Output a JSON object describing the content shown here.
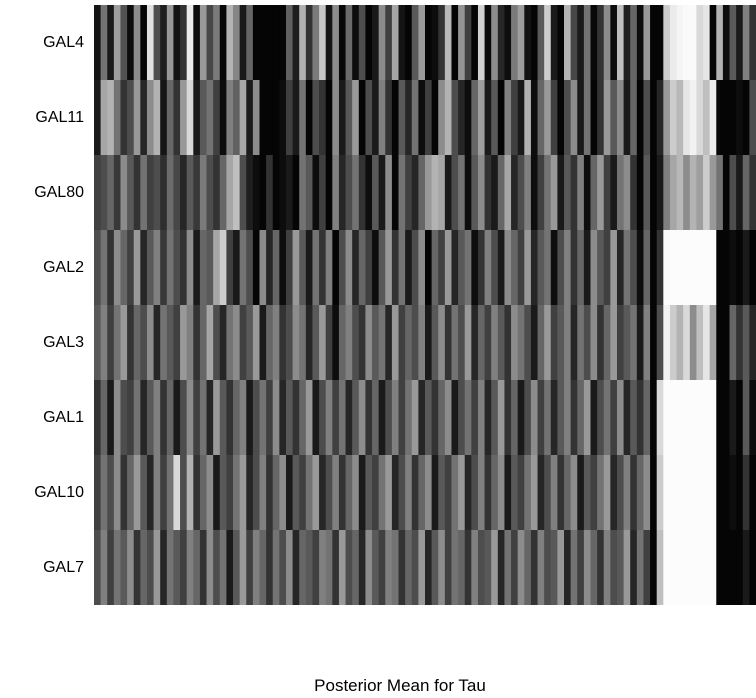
{
  "chart_data": {
    "type": "heatmap",
    "title": "",
    "xlabel": "Posterior Mean for Tau",
    "ylabel": "",
    "rows": [
      "GAL4",
      "GAL11",
      "GAL80",
      "GAL2",
      "GAL3",
      "GAL1",
      "GAL10",
      "GAL7"
    ],
    "columns": 100,
    "colormap": "grayscale (black = low, white = high)",
    "grid": false,
    "values": [
      [
        0.08,
        0.45,
        0.1,
        0.62,
        0.32,
        0.05,
        0.55,
        0.02,
        0.88,
        0.3,
        0.12,
        0.6,
        0.08,
        0.2,
        0.92,
        0.05,
        0.6,
        0.28,
        0.48,
        0.03,
        0.7,
        0.52,
        0.1,
        0.4,
        0.02,
        0.02,
        0.02,
        0.02,
        0.02,
        0.38,
        0.12,
        0.7,
        0.2,
        0.48,
        0.78,
        0.08,
        0.55,
        0.03,
        0.42,
        0.05,
        0.3,
        0.02,
        0.1,
        0.55,
        0.25,
        0.65,
        0.08,
        0.02,
        0.35,
        0.6,
        0.02,
        0.05,
        0.2,
        0.72,
        0.02,
        0.58,
        0.25,
        0.02,
        0.82,
        0.04,
        0.55,
        0.15,
        0.05,
        0.48,
        0.62,
        0.08,
        0.02,
        0.35,
        0.8,
        0.1,
        0.02,
        0.7,
        0.28,
        0.1,
        0.45,
        0.03,
        0.2,
        0.55,
        0.05,
        0.75,
        0.12,
        0.4,
        0.05,
        0.6,
        0.02,
        0.02,
        0.8,
        0.92,
        0.96,
        0.98,
        0.98,
        0.85,
        0.9,
        0.02,
        0.7,
        0.05,
        0.35,
        0.1,
        0.5,
        0.2
      ],
      [
        0.1,
        0.65,
        0.7,
        0.45,
        0.2,
        0.3,
        0.6,
        0.15,
        0.55,
        0.7,
        0.08,
        0.4,
        0.2,
        0.6,
        0.85,
        0.1,
        0.35,
        0.45,
        0.25,
        0.05,
        0.5,
        0.38,
        0.65,
        0.1,
        0.55,
        0.02,
        0.02,
        0.02,
        0.05,
        0.25,
        0.1,
        0.45,
        0.02,
        0.3,
        0.2,
        0.02,
        0.55,
        0.1,
        0.35,
        0.6,
        0.02,
        0.3,
        0.1,
        0.5,
        0.2,
        0.02,
        0.35,
        0.15,
        0.45,
        0.05,
        0.25,
        0.02,
        0.55,
        0.7,
        0.3,
        0.15,
        0.05,
        0.4,
        0.62,
        0.1,
        0.35,
        0.02,
        0.5,
        0.25,
        0.1,
        0.7,
        0.05,
        0.4,
        0.6,
        0.25,
        0.02,
        0.3,
        0.55,
        0.1,
        0.45,
        0.02,
        0.2,
        0.6,
        0.35,
        0.55,
        0.1,
        0.4,
        0.02,
        0.3,
        0.02,
        0.15,
        0.6,
        0.8,
        0.72,
        0.9,
        0.95,
        0.85,
        0.75,
        0.92,
        0.02,
        0.02,
        0.02,
        0.05,
        0.02,
        0.3
      ],
      [
        0.25,
        0.3,
        0.4,
        0.22,
        0.55,
        0.35,
        0.2,
        0.45,
        0.25,
        0.3,
        0.18,
        0.42,
        0.28,
        0.15,
        0.35,
        0.22,
        0.48,
        0.3,
        0.2,
        0.4,
        0.65,
        0.75,
        0.3,
        0.12,
        0.05,
        0.02,
        0.2,
        0.02,
        0.05,
        0.1,
        0.02,
        0.45,
        0.35,
        0.05,
        0.25,
        0.02,
        0.5,
        0.15,
        0.3,
        0.45,
        0.2,
        0.05,
        0.35,
        0.1,
        0.55,
        0.02,
        0.45,
        0.25,
        0.15,
        0.4,
        0.6,
        0.7,
        0.65,
        0.1,
        0.3,
        0.45,
        0.05,
        0.35,
        0.55,
        0.2,
        0.1,
        0.4,
        0.65,
        0.15,
        0.3,
        0.5,
        0.05,
        0.25,
        0.45,
        0.6,
        0.1,
        0.35,
        0.2,
        0.5,
        0.05,
        0.4,
        0.6,
        0.25,
        0.1,
        0.45,
        0.55,
        0.2,
        0.02,
        0.35,
        0.02,
        0.1,
        0.5,
        0.65,
        0.72,
        0.55,
        0.7,
        0.62,
        0.8,
        0.6,
        0.45,
        0.02,
        0.3,
        0.1,
        0.4,
        0.2
      ],
      [
        0.3,
        0.45,
        0.2,
        0.55,
        0.4,
        0.25,
        0.6,
        0.15,
        0.35,
        0.5,
        0.22,
        0.45,
        0.3,
        0.2,
        0.55,
        0.1,
        0.4,
        0.35,
        0.65,
        0.8,
        0.25,
        0.1,
        0.45,
        0.3,
        0.02,
        0.55,
        0.15,
        0.4,
        0.05,
        0.25,
        0.6,
        0.35,
        0.1,
        0.45,
        0.2,
        0.5,
        0.02,
        0.3,
        0.55,
        0.15,
        0.4,
        0.25,
        0.05,
        0.35,
        0.6,
        0.2,
        0.45,
        0.1,
        0.3,
        0.55,
        0.02,
        0.4,
        0.25,
        0.6,
        0.15,
        0.35,
        0.45,
        0.05,
        0.2,
        0.5,
        0.3,
        0.1,
        0.55,
        0.4,
        0.25,
        0.6,
        0.15,
        0.35,
        0.45,
        0.05,
        0.3,
        0.5,
        0.2,
        0.4,
        0.1,
        0.55,
        0.35,
        0.25,
        0.6,
        0.15,
        0.45,
        0.3,
        0.05,
        0.4,
        0.02,
        0.2,
        0.99,
        0.99,
        0.99,
        0.99,
        0.99,
        0.99,
        0.99,
        0.99,
        0.02,
        0.02,
        0.05,
        0.02,
        0.1,
        0.02
      ],
      [
        0.35,
        0.5,
        0.25,
        0.45,
        0.6,
        0.2,
        0.4,
        0.3,
        0.55,
        0.15,
        0.45,
        0.35,
        0.25,
        0.6,
        0.5,
        0.2,
        0.4,
        0.65,
        0.3,
        0.15,
        0.45,
        0.55,
        0.25,
        0.35,
        0.6,
        0.1,
        0.4,
        0.5,
        0.2,
        0.3,
        0.55,
        0.45,
        0.15,
        0.35,
        0.6,
        0.25,
        0.05,
        0.4,
        0.5,
        0.3,
        0.2,
        0.55,
        0.35,
        0.45,
        0.15,
        0.6,
        0.25,
        0.4,
        0.3,
        0.5,
        0.1,
        0.35,
        0.55,
        0.2,
        0.45,
        0.3,
        0.6,
        0.15,
        0.4,
        0.25,
        0.5,
        0.35,
        0.2,
        0.55,
        0.45,
        0.3,
        0.1,
        0.4,
        0.6,
        0.25,
        0.35,
        0.5,
        0.15,
        0.45,
        0.3,
        0.55,
        0.2,
        0.4,
        0.6,
        0.25,
        0.35,
        0.45,
        0.1,
        0.5,
        0.02,
        0.3,
        0.95,
        0.8,
        0.7,
        0.85,
        0.55,
        0.75,
        0.9,
        0.65,
        0.02,
        0.02,
        0.4,
        0.2,
        0.35,
        0.15
      ],
      [
        0.2,
        0.4,
        0.1,
        0.55,
        0.3,
        0.25,
        0.45,
        0.15,
        0.35,
        0.5,
        0.2,
        0.4,
        0.1,
        0.3,
        0.55,
        0.25,
        0.45,
        0.15,
        0.6,
        0.35,
        0.2,
        0.4,
        0.5,
        0.1,
        0.3,
        0.45,
        0.25,
        0.55,
        0.15,
        0.35,
        0.2,
        0.4,
        0.6,
        0.1,
        0.3,
        0.5,
        0.25,
        0.45,
        0.15,
        0.35,
        0.55,
        0.2,
        0.4,
        0.1,
        0.3,
        0.5,
        0.25,
        0.45,
        0.6,
        0.15,
        0.35,
        0.2,
        0.4,
        0.55,
        0.1,
        0.3,
        0.45,
        0.25,
        0.5,
        0.15,
        0.35,
        0.6,
        0.2,
        0.4,
        0.1,
        0.3,
        0.55,
        0.25,
        0.45,
        0.15,
        0.35,
        0.5,
        0.2,
        0.4,
        0.6,
        0.1,
        0.3,
        0.45,
        0.25,
        0.55,
        0.15,
        0.35,
        0.2,
        0.4,
        0.02,
        0.85,
        0.99,
        0.99,
        0.99,
        0.99,
        0.99,
        0.99,
        0.99,
        0.99,
        0.02,
        0.02,
        0.1,
        0.02,
        0.35,
        0.05
      ],
      [
        0.25,
        0.45,
        0.3,
        0.55,
        0.2,
        0.4,
        0.6,
        0.35,
        0.15,
        0.5,
        0.25,
        0.45,
        0.85,
        0.3,
        0.7,
        0.2,
        0.4,
        0.55,
        0.1,
        0.35,
        0.25,
        0.45,
        0.6,
        0.15,
        0.3,
        0.5,
        0.2,
        0.4,
        0.55,
        0.1,
        0.35,
        0.25,
        0.45,
        0.6,
        0.15,
        0.3,
        0.5,
        0.2,
        0.4,
        0.55,
        0.1,
        0.35,
        0.25,
        0.45,
        0.6,
        0.15,
        0.3,
        0.5,
        0.2,
        0.4,
        0.55,
        0.1,
        0.35,
        0.25,
        0.45,
        0.6,
        0.15,
        0.3,
        0.5,
        0.2,
        0.4,
        0.55,
        0.1,
        0.35,
        0.25,
        0.45,
        0.6,
        0.15,
        0.3,
        0.5,
        0.2,
        0.4,
        0.55,
        0.1,
        0.35,
        0.25,
        0.45,
        0.6,
        0.15,
        0.3,
        0.5,
        0.2,
        0.4,
        0.55,
        0.02,
        0.8,
        0.99,
        0.99,
        0.99,
        0.99,
        0.99,
        0.99,
        0.99,
        0.99,
        0.02,
        0.02,
        0.05,
        0.02,
        0.2,
        0.02
      ],
      [
        0.3,
        0.5,
        0.25,
        0.45,
        0.35,
        0.55,
        0.2,
        0.4,
        0.3,
        0.6,
        0.15,
        0.45,
        0.35,
        0.25,
        0.5,
        0.4,
        0.2,
        0.55,
        0.3,
        0.45,
        0.1,
        0.35,
        0.6,
        0.25,
        0.5,
        0.4,
        0.2,
        0.45,
        0.3,
        0.55,
        0.15,
        0.4,
        0.35,
        0.25,
        0.5,
        0.45,
        0.2,
        0.6,
        0.3,
        0.4,
        0.15,
        0.55,
        0.35,
        0.25,
        0.5,
        0.45,
        0.2,
        0.4,
        0.3,
        0.6,
        0.15,
        0.35,
        0.55,
        0.25,
        0.45,
        0.4,
        0.2,
        0.5,
        0.3,
        0.35,
        0.6,
        0.15,
        0.45,
        0.25,
        0.55,
        0.4,
        0.2,
        0.5,
        0.3,
        0.35,
        0.6,
        0.15,
        0.45,
        0.25,
        0.55,
        0.4,
        0.2,
        0.5,
        0.3,
        0.35,
        0.6,
        0.15,
        0.45,
        0.25,
        0.02,
        0.75,
        0.99,
        0.99,
        0.99,
        0.99,
        0.99,
        0.99,
        0.99,
        0.99,
        0.02,
        0.02,
        0.02,
        0.02,
        0.1,
        0.02
      ]
    ]
  }
}
